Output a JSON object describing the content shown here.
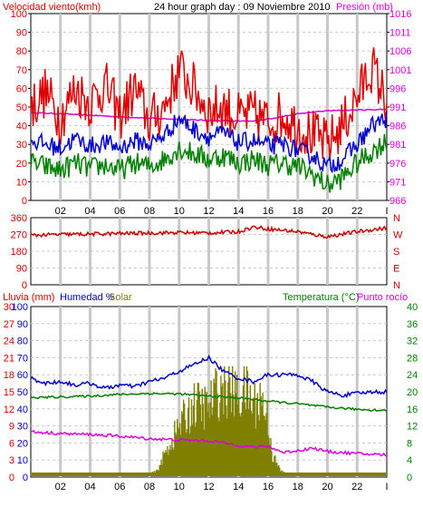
{
  "colors": {
    "wind_speed": "#dd0000",
    "wind_avg": "#0000cc",
    "wind_low": "#008000",
    "pressure": "#dd00dd",
    "direction": "#cc0000",
    "humidity": "#0000cc",
    "solar": "#808000",
    "temperature": "#008000",
    "dew_point": "#dd00dd",
    "grid": "#c8c8c8",
    "frame": "#000000"
  },
  "chart_data": [
    {
      "type": "line",
      "title": "24 hour graph day : 09 Noviembre 2010",
      "left_axis_label": "Velocidad viento(kmh)",
      "right_axis_label": "Presión (mb)",
      "x_ticks": [
        "02",
        "04",
        "06",
        "08",
        "10",
        "12",
        "14",
        "16",
        "18",
        "20",
        "22",
        "I"
      ],
      "x_tick_hours": [
        2,
        4,
        6,
        8,
        10,
        12,
        14,
        16,
        18,
        20,
        22,
        24
      ],
      "left_ticks": [
        "0",
        "10",
        "20",
        "30",
        "40",
        "50",
        "60",
        "70",
        "80",
        "90",
        "100"
      ],
      "left_range": [
        0,
        100
      ],
      "right_ticks": [
        "966",
        "971",
        "976",
        "981",
        "986",
        "991",
        "996",
        "1001",
        "1006",
        "1011",
        "1016"
      ],
      "right_range": [
        966,
        1016
      ],
      "series": [
        {
          "key": "wind_gust",
          "color_key": "wind_speed",
          "hours": [
            0,
            1,
            2,
            3,
            4,
            5,
            6,
            7,
            8,
            9,
            10,
            11,
            12,
            13,
            14,
            15,
            16,
            17,
            18,
            19,
            20,
            21,
            22,
            23,
            24
          ],
          "values": [
            50,
            58,
            44,
            60,
            52,
            62,
            45,
            60,
            42,
            50,
            70,
            60,
            48,
            50,
            44,
            46,
            42,
            46,
            40,
            35,
            30,
            40,
            55,
            72,
            52
          ]
        },
        {
          "key": "wind_avg",
          "color_key": "wind_avg",
          "hours": [
            0,
            1,
            2,
            3,
            4,
            5,
            6,
            7,
            8,
            9,
            10,
            11,
            12,
            13,
            14,
            15,
            16,
            17,
            18,
            19,
            20,
            21,
            22,
            23,
            24
          ],
          "values": [
            32,
            30,
            28,
            33,
            29,
            31,
            28,
            32,
            30,
            35,
            44,
            38,
            34,
            36,
            31,
            32,
            29,
            30,
            27,
            24,
            18,
            22,
            30,
            40,
            44
          ]
        },
        {
          "key": "wind_low",
          "color_key": "wind_low",
          "hours": [
            0,
            1,
            2,
            3,
            4,
            5,
            6,
            7,
            8,
            9,
            10,
            11,
            12,
            13,
            14,
            15,
            16,
            17,
            18,
            19,
            20,
            21,
            22,
            23,
            24
          ],
          "values": [
            20,
            18,
            16,
            20,
            17,
            19,
            16,
            20,
            18,
            22,
            28,
            25,
            22,
            24,
            20,
            22,
            19,
            20,
            18,
            14,
            8,
            12,
            20,
            26,
            32
          ]
        },
        {
          "key": "pressure",
          "color_key": "pressure",
          "axis": "right",
          "hours": [
            0,
            2,
            4,
            6,
            8,
            10,
            12,
            14,
            15,
            16,
            18,
            20,
            22,
            24
          ],
          "values": [
            989.5,
            989.2,
            988.8,
            988.4,
            988.0,
            987.7,
            987.4,
            987.2,
            987.2,
            987.8,
            989.2,
            990.0,
            990.2,
            990.4
          ]
        }
      ]
    },
    {
      "type": "line",
      "left_ticks": [
        "360",
        "270",
        "180",
        "90",
        "0"
      ],
      "left_range": [
        0,
        360
      ],
      "right_ticks": [
        "N",
        "W",
        "S",
        "E",
        "N"
      ],
      "x_tick_hours": [
        2,
        4,
        6,
        8,
        10,
        12,
        14,
        16,
        18,
        20,
        22,
        24
      ],
      "series": [
        {
          "key": "direction",
          "color_key": "direction",
          "hours": [
            0,
            2,
            4,
            6,
            8,
            10,
            12,
            14,
            15,
            16,
            18,
            19,
            20,
            22,
            24
          ],
          "values": [
            265,
            270,
            272,
            275,
            278,
            280,
            278,
            285,
            310,
            300,
            285,
            270,
            258,
            285,
            305
          ]
        }
      ]
    },
    {
      "type": "line",
      "labels": {
        "rain": "Lluvia (mm)",
        "humidity": "Humedad %",
        "solar": "Solar",
        "temperature": "Temperatura (°C)",
        "dew": "Punto rocío"
      },
      "x_ticks": [
        "02",
        "04",
        "06",
        "08",
        "10",
        "12",
        "14",
        "16",
        "18",
        "20",
        "22",
        "I"
      ],
      "x_tick_hours": [
        2,
        4,
        6,
        8,
        10,
        12,
        14,
        16,
        18,
        20,
        22,
        24
      ],
      "rain_ticks": [
        "0",
        "3",
        "6",
        "9",
        "12",
        "15",
        "18",
        "21",
        "24",
        "27",
        "30"
      ],
      "humidity_ticks": [
        "0",
        "10",
        "20",
        "30",
        "40",
        "50",
        "60",
        "70",
        "80",
        "90",
        "100"
      ],
      "humidity_range": [
        0,
        100
      ],
      "temperature_ticks": [
        "0",
        "4",
        "8",
        "12",
        "16",
        "20",
        "24",
        "28",
        "32",
        "36",
        "40"
      ],
      "temperature_range": [
        0,
        40
      ],
      "series": [
        {
          "key": "humidity",
          "color_key": "humidity",
          "axis": "humidity",
          "hours": [
            0,
            1,
            2,
            3,
            4,
            5,
            6,
            7,
            8,
            9,
            10,
            11,
            12,
            13,
            14,
            15,
            16,
            18,
            19,
            20,
            21,
            22,
            23,
            24
          ],
          "values": [
            58,
            55,
            56,
            54,
            55,
            52,
            54,
            53,
            56,
            58,
            62,
            66,
            70,
            62,
            58,
            56,
            60,
            60,
            56,
            50,
            48,
            49,
            50,
            50
          ]
        },
        {
          "key": "temperature",
          "color_key": "temperature",
          "axis": "temperature",
          "hours": [
            0,
            2,
            4,
            6,
            8,
            10,
            12,
            14,
            16,
            18,
            20,
            22,
            24
          ],
          "values": [
            18.6,
            18.8,
            19.0,
            19.4,
            19.6,
            19.5,
            19.0,
            18.6,
            17.8,
            17.2,
            16.4,
            15.9,
            15.6
          ]
        },
        {
          "key": "dew_point",
          "color_key": "dew_point",
          "axis": "temperature",
          "hours": [
            0,
            2,
            4,
            6,
            8,
            10,
            12,
            13,
            14,
            15,
            16,
            17,
            18,
            19,
            20,
            22,
            24
          ],
          "values": [
            10.6,
            10.2,
            10.0,
            9.6,
            9.0,
            8.7,
            8.5,
            8.0,
            7.5,
            7.0,
            7.2,
            5.8,
            6.2,
            6.8,
            6.0,
            5.5,
            5.2
          ]
        },
        {
          "key": "solar",
          "color_key": "solar",
          "axis": "humidity",
          "hours": [
            0,
            7.5,
            8.5,
            9,
            10,
            11,
            12,
            12.5,
            13,
            13.5,
            14,
            14.5,
            15,
            15.5,
            16,
            16.3,
            16.8,
            17.5,
            24
          ],
          "values": [
            0,
            0,
            4,
            15,
            35,
            50,
            48,
            58,
            62,
            60,
            55,
            60,
            50,
            55,
            40,
            15,
            5,
            0,
            0
          ]
        }
      ]
    }
  ]
}
